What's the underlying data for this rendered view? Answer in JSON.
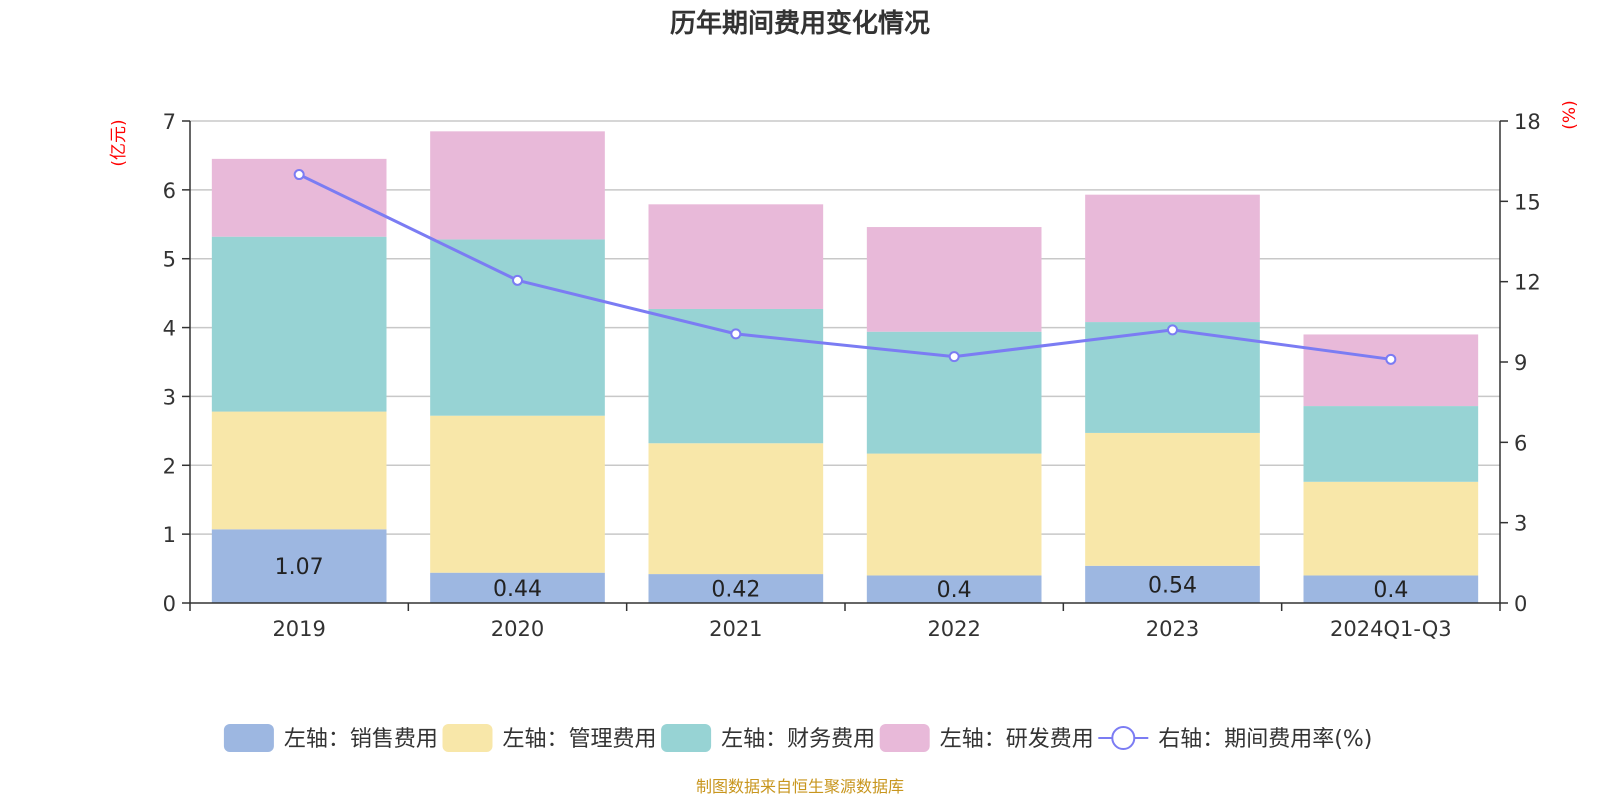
{
  "chart_data": {
    "type": "bar",
    "stacked": true,
    "title": "历年期间费用变化情况",
    "categories": [
      "2019",
      "2020",
      "2021",
      "2022",
      "2023",
      "2024Q1-Q3"
    ],
    "left_axis": {
      "unit_label": "(亿元)",
      "ylim": [
        0,
        7
      ],
      "ticks": [
        0,
        1,
        2,
        3,
        4,
        5,
        6,
        7
      ]
    },
    "right_axis": {
      "unit_label": "(%)",
      "ylim": [
        0,
        18
      ],
      "ticks": [
        0,
        3,
        6,
        9,
        12,
        15,
        18
      ]
    },
    "series": [
      {
        "name": "左轴：销售费用",
        "axis": "left",
        "color": "#9db7e1",
        "values": [
          1.07,
          0.44,
          0.42,
          0.4,
          0.54,
          0.4
        ],
        "show_labels": true
      },
      {
        "name": "左轴：管理费用",
        "axis": "left",
        "color": "#f8e7a9",
        "values": [
          1.71,
          2.28,
          1.9,
          1.77,
          1.93,
          1.36
        ],
        "show_labels": false
      },
      {
        "name": "左轴：财务费用",
        "axis": "left",
        "color": "#97d3d4",
        "values": [
          2.54,
          2.56,
          1.95,
          1.77,
          1.61,
          1.1
        ],
        "show_labels": false
      },
      {
        "name": "左轴：研发费用",
        "axis": "left",
        "color": "#e8b9d9",
        "values": [
          1.13,
          1.57,
          1.52,
          1.52,
          1.85,
          1.04
        ],
        "show_labels": false
      }
    ],
    "line_series": {
      "name": "右轴：期间费用率(%)",
      "axis": "right",
      "color": "#7b7cf3",
      "values": [
        16.0,
        12.05,
        10.05,
        9.2,
        10.2,
        9.1
      ]
    },
    "legend_position": "bottom",
    "source": "制图数据来自恒生聚源数据库"
  }
}
